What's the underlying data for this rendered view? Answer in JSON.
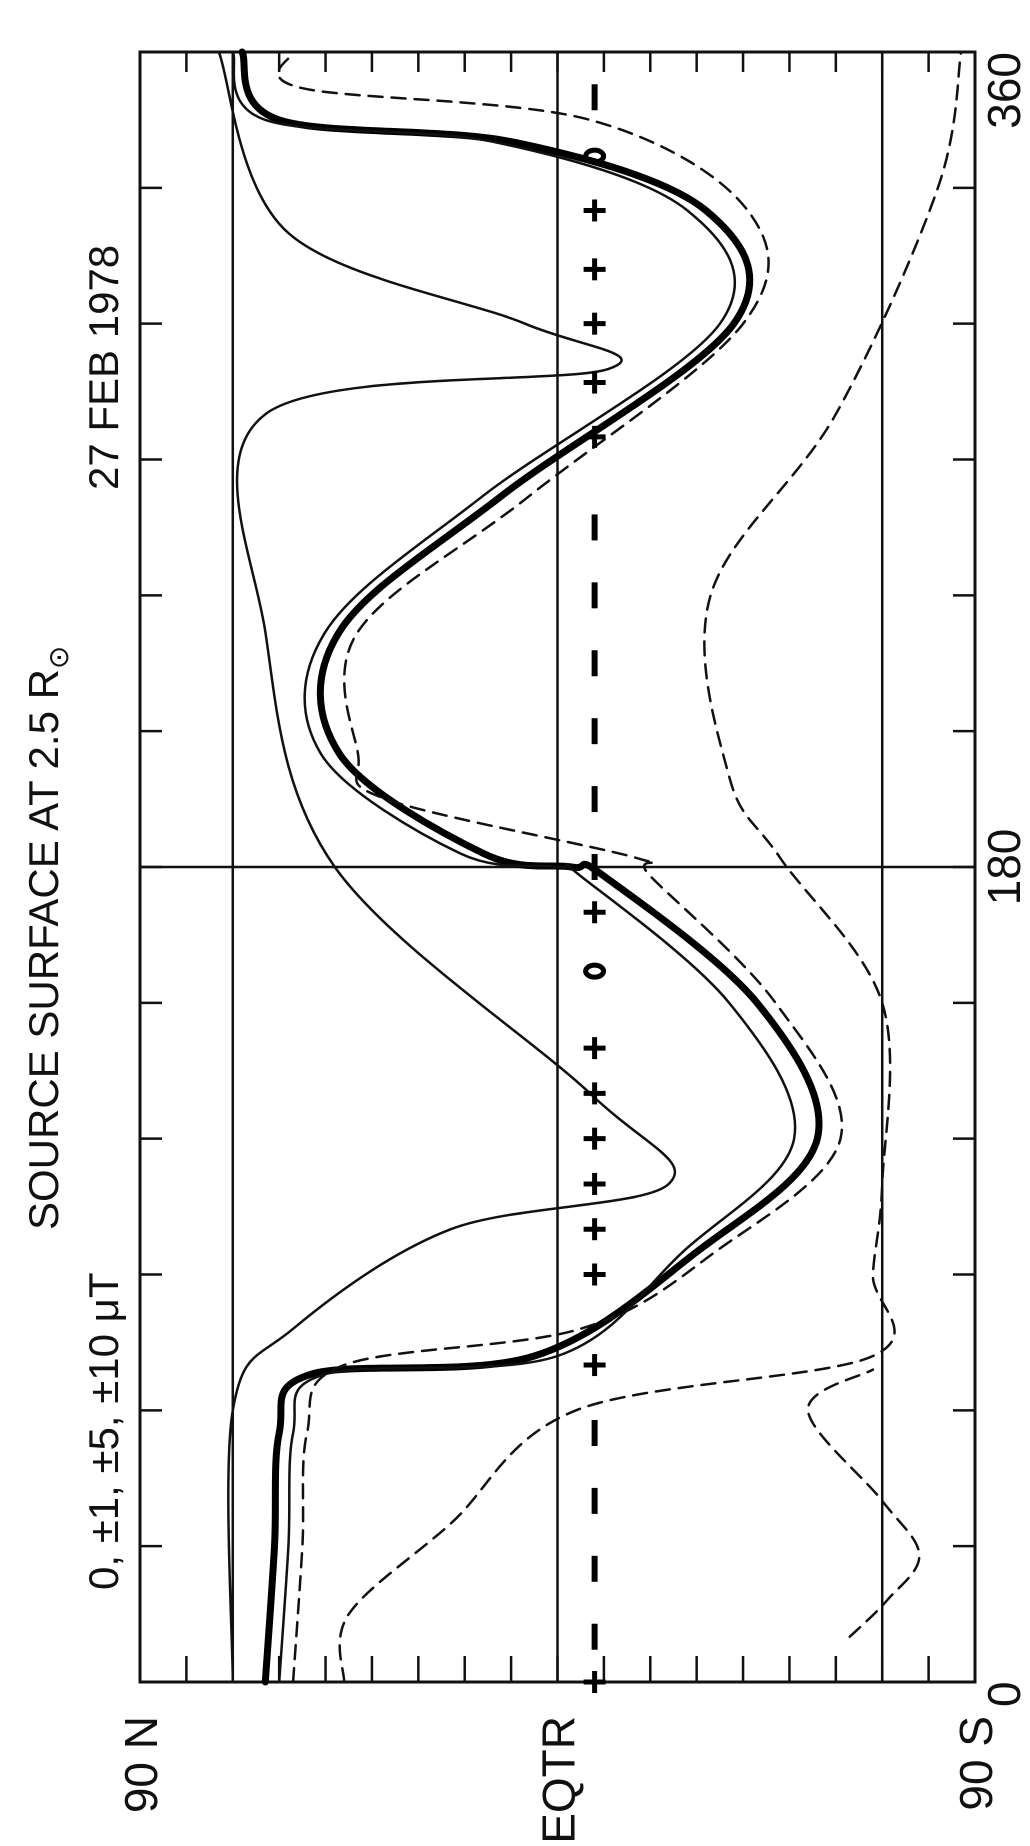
{
  "chart_data": {
    "type": "line",
    "title": "SOURCE SURFACE AT 2.5 R",
    "title_subscript": "⊙",
    "subtitle": "0, ±1, ±5, ±10 μT",
    "date_label": "27 FEB 1978",
    "x_axis": {
      "range": [
        0,
        360
      ],
      "tick_labels": [
        "0",
        "180",
        "360"
      ],
      "tick_values": [
        0,
        180,
        360
      ],
      "minor_tick_step": 30
    },
    "y_axis": {
      "range": [
        -90,
        90
      ],
      "tick_labels": [
        "90 N",
        "EQTR",
        "90 S"
      ],
      "tick_values": [
        90,
        0,
        -90
      ],
      "minor_tick_step": 10,
      "reference_lines": [
        70,
        -70
      ]
    },
    "grid": {
      "vertical": [
        180
      ],
      "horizontal": [
        0,
        70,
        -70
      ]
    },
    "orientation": "rotated-90-ccw",
    "contour_style": {
      "neutral": "thick-solid",
      "positive": "thin-solid",
      "negative": "dashed"
    },
    "series": [
      {
        "name": "0",
        "style": "thick-solid",
        "x": [
          0,
          30,
          55,
          68,
          72,
          95,
          120,
          150,
          178,
          180,
          183,
          205,
          232,
          262,
          300,
          325,
          340,
          345,
          360
        ],
        "y": [
          63,
          61,
          60,
          53,
          5,
          -30,
          -56,
          -43,
          -10,
          -3,
          16,
          47,
          47,
          12,
          -38,
          -32,
          9,
          60,
          68
        ]
      },
      {
        "name": "+1",
        "style": "thin-solid",
        "x": [
          0,
          30,
          55,
          68,
          72,
          95,
          120,
          150,
          178,
          180,
          183,
          205,
          232,
          262,
          300,
          325,
          340,
          345,
          360
        ],
        "y": [
          60,
          58,
          57,
          50,
          0,
          -27,
          -51,
          -37,
          -5,
          0,
          21,
          51,
          50,
          16,
          -35,
          -28,
          13,
          63,
          70
        ]
      },
      {
        "name": "-1",
        "style": "dashed",
        "x": [
          0,
          30,
          55,
          70,
          78,
          95,
          120,
          150,
          178,
          182,
          195,
          205,
          232,
          262,
          300,
          325,
          345,
          352,
          360
        ],
        "y": [
          57,
          55,
          54,
          46,
          -5,
          -34,
          -61,
          -47,
          -20,
          -17,
          37,
          43,
          43,
          6,
          -40,
          -41,
          -7,
          55,
          57
        ]
      },
      {
        "name": "+5",
        "style": "thin-solid",
        "x": [
          0,
          60,
          78,
          100,
          110,
          130,
          180,
          232,
          280,
          290,
          300,
          320,
          360
        ],
        "y": [
          70,
          70,
          57,
          23,
          -24,
          -7,
          48,
          63,
          63,
          -11,
          7,
          58,
          73
        ]
      },
      {
        "name": "-5",
        "style": "dashed",
        "x": [
          0,
          15,
          35,
          60,
          72,
          90,
          110,
          150,
          182,
          200,
          240,
          280,
          330,
          360
        ],
        "y": [
          46,
          45,
          23,
          -4,
          -68,
          -68,
          -70,
          -70,
          -48,
          -37,
          -33,
          -60,
          -82,
          -87
        ]
      },
      {
        "name": "-10",
        "style": "dashed",
        "x": [
          10,
          18,
          28,
          40,
          60,
          69
        ],
        "y": [
          -63,
          -71,
          -78,
          -70,
          -54,
          -68
        ]
      }
    ],
    "markers": [
      {
        "symbol": "+",
        "x": 0,
        "y": -8
      },
      {
        "symbol": "+",
        "x": 70,
        "y": -8
      },
      {
        "symbol": "+",
        "x": 90,
        "y": -8
      },
      {
        "symbol": "+",
        "x": 100,
        "y": -8
      },
      {
        "symbol": "+",
        "x": 110,
        "y": -8
      },
      {
        "symbol": "+",
        "x": 120,
        "y": -8
      },
      {
        "symbol": "+",
        "x": 130,
        "y": -8
      },
      {
        "symbol": "+",
        "x": 140,
        "y": -8
      },
      {
        "symbol": "0",
        "x": 157,
        "y": -8
      },
      {
        "symbol": "+",
        "x": 170,
        "y": -8
      },
      {
        "symbol": "+",
        "x": 275,
        "y": -8
      },
      {
        "symbol": "+",
        "x": 287,
        "y": -8
      },
      {
        "symbol": "+",
        "x": 300,
        "y": -8
      },
      {
        "symbol": "+",
        "x": 312,
        "y": -8
      },
      {
        "symbol": "+",
        "x": 325,
        "y": -8
      },
      {
        "symbol": "0",
        "x": 337,
        "y": -8
      },
      {
        "symbol": "-",
        "x": 10,
        "y": -8
      },
      {
        "symbol": "-",
        "x": 25,
        "y": -8
      },
      {
        "symbol": "-",
        "x": 40,
        "y": -8
      },
      {
        "symbol": "-",
        "x": 55,
        "y": -8
      },
      {
        "symbol": "-",
        "x": 180,
        "y": -8
      },
      {
        "symbol": "-",
        "x": 195,
        "y": -8
      },
      {
        "symbol": "-",
        "x": 210,
        "y": -8
      },
      {
        "symbol": "-",
        "x": 225,
        "y": -8
      },
      {
        "symbol": "-",
        "x": 240,
        "y": -8
      },
      {
        "symbol": "-",
        "x": 255,
        "y": -8
      },
      {
        "symbol": "-",
        "x": 350,
        "y": -8
      }
    ]
  }
}
